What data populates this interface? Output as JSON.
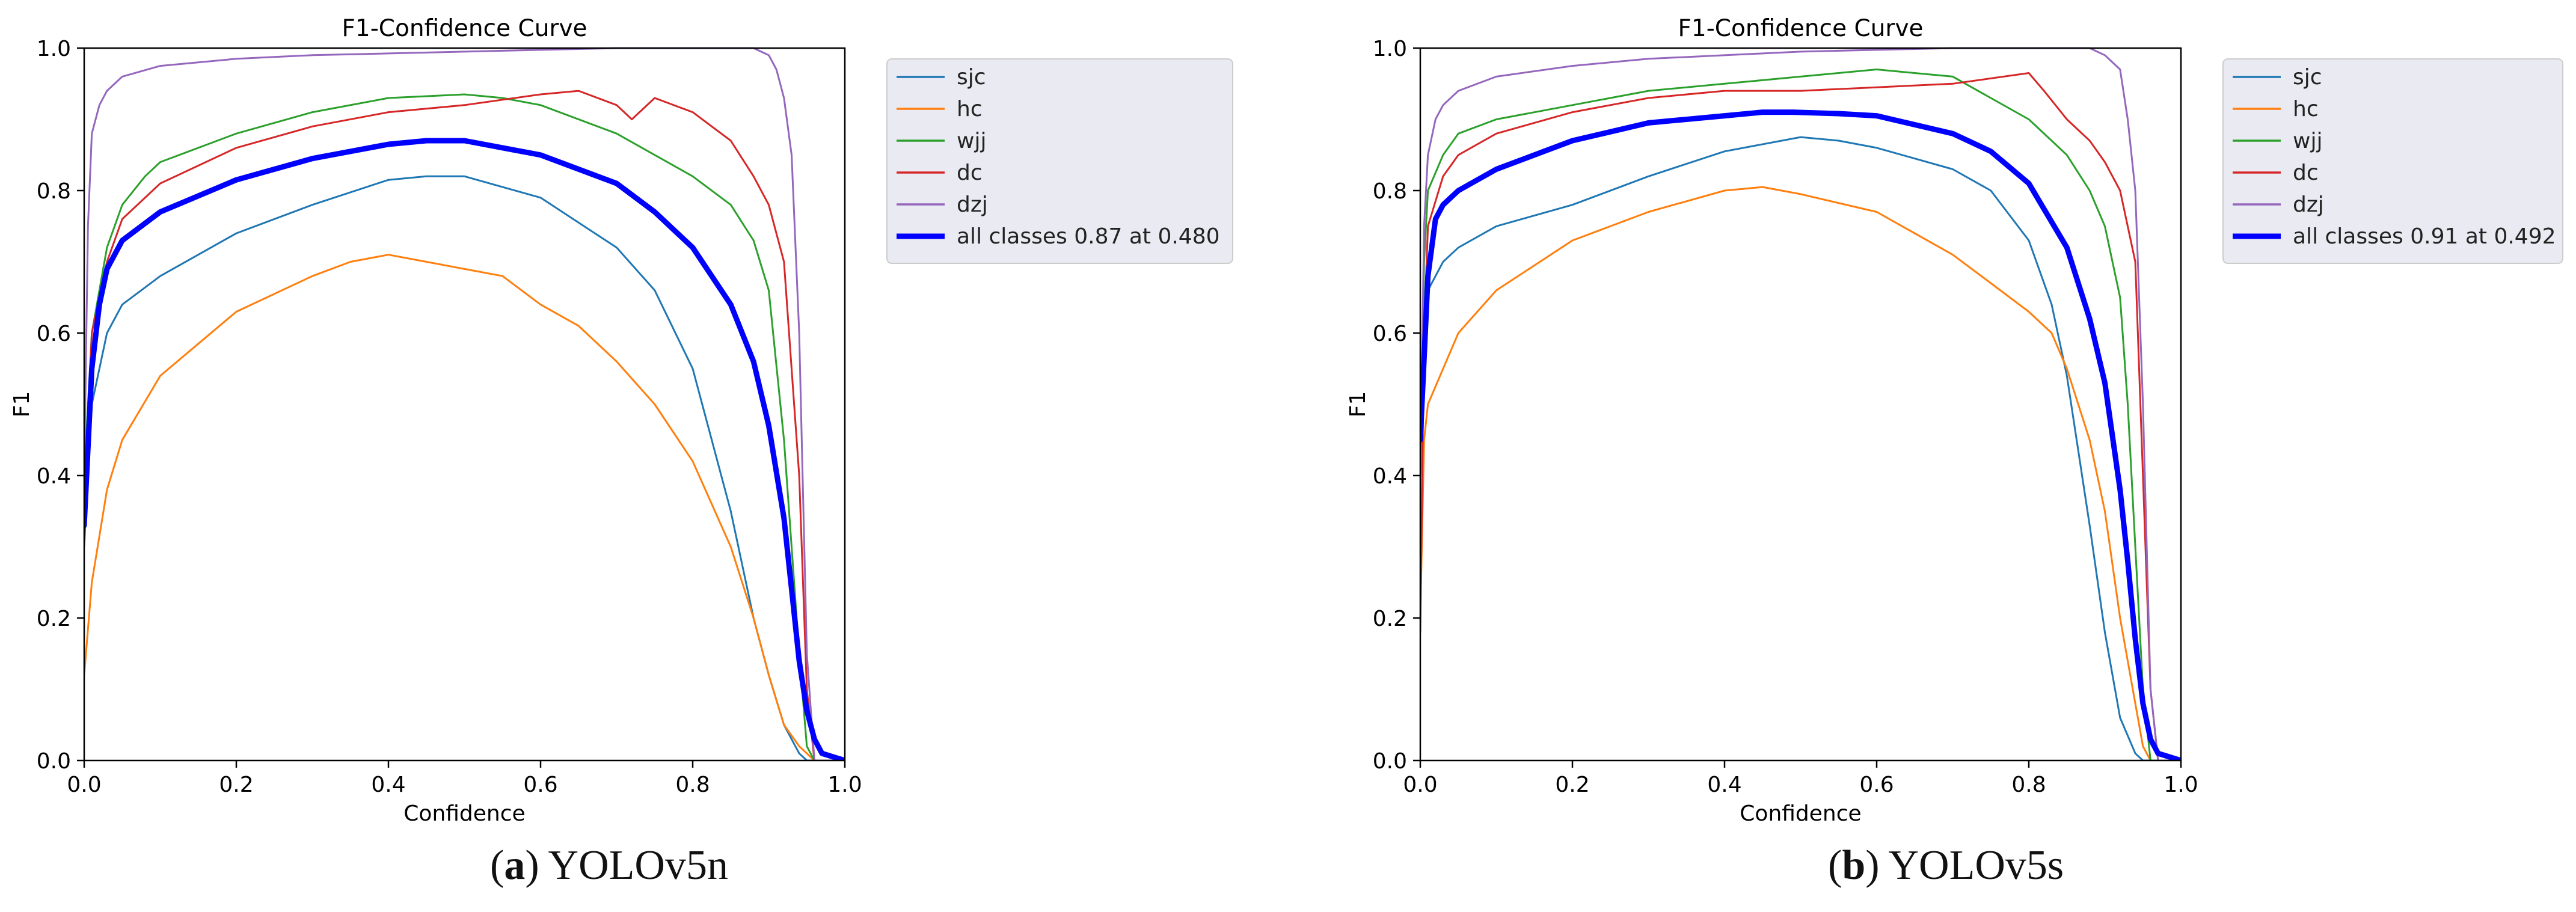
{
  "chart_data": [
    {
      "type": "line",
      "title": "F1-Confidence Curve",
      "xlabel": "Confidence",
      "ylabel": "F1",
      "xlim": [
        0.0,
        1.0
      ],
      "ylim": [
        0.0,
        1.0
      ],
      "xticks": [
        "0.0",
        "0.2",
        "0.4",
        "0.6",
        "0.8",
        "1.0"
      ],
      "yticks": [
        "0.0",
        "0.2",
        "0.4",
        "0.6",
        "0.8",
        "1.0"
      ],
      "grid": false,
      "legend_position": "outside-right-top",
      "caption": {
        "letter": "a",
        "text": "YOLOv5n"
      },
      "series": [
        {
          "name": "sjc",
          "color": "#1f77b4",
          "width": 1,
          "x": [
            0.0,
            0.01,
            0.03,
            0.05,
            0.1,
            0.2,
            0.3,
            0.4,
            0.45,
            0.5,
            0.6,
            0.7,
            0.75,
            0.8,
            0.85,
            0.88,
            0.9,
            0.92,
            0.94,
            0.95,
            1.0
          ],
          "y": [
            0.3,
            0.5,
            0.6,
            0.64,
            0.68,
            0.74,
            0.78,
            0.815,
            0.82,
            0.82,
            0.79,
            0.72,
            0.66,
            0.55,
            0.35,
            0.2,
            0.12,
            0.05,
            0.01,
            0.0,
            0.0
          ]
        },
        {
          "name": "hc",
          "color": "#ff7f0e",
          "width": 1,
          "x": [
            0.0,
            0.01,
            0.03,
            0.05,
            0.1,
            0.2,
            0.3,
            0.35,
            0.4,
            0.45,
            0.5,
            0.55,
            0.6,
            0.65,
            0.7,
            0.75,
            0.8,
            0.85,
            0.88,
            0.9,
            0.92,
            0.94,
            0.96,
            1.0
          ],
          "y": [
            0.12,
            0.25,
            0.38,
            0.45,
            0.54,
            0.63,
            0.68,
            0.7,
            0.71,
            0.7,
            0.69,
            0.68,
            0.64,
            0.61,
            0.56,
            0.5,
            0.42,
            0.3,
            0.2,
            0.12,
            0.05,
            0.02,
            0.0,
            0.0
          ]
        },
        {
          "name": "wjj",
          "color": "#2ca02c",
          "width": 1,
          "x": [
            0.0,
            0.01,
            0.03,
            0.05,
            0.08,
            0.1,
            0.2,
            0.3,
            0.4,
            0.5,
            0.55,
            0.6,
            0.7,
            0.8,
            0.85,
            0.88,
            0.9,
            0.92,
            0.94,
            0.95,
            0.96,
            1.0
          ],
          "y": [
            0.4,
            0.6,
            0.72,
            0.78,
            0.82,
            0.84,
            0.88,
            0.91,
            0.93,
            0.935,
            0.93,
            0.92,
            0.88,
            0.82,
            0.78,
            0.73,
            0.66,
            0.45,
            0.15,
            0.02,
            0.0,
            0.0
          ]
        },
        {
          "name": "dc",
          "color": "#d62728",
          "width": 1,
          "x": [
            0.0,
            0.01,
            0.03,
            0.05,
            0.1,
            0.2,
            0.3,
            0.4,
            0.5,
            0.6,
            0.65,
            0.7,
            0.72,
            0.75,
            0.8,
            0.85,
            0.88,
            0.9,
            0.92,
            0.94,
            0.95,
            0.96,
            1.0
          ],
          "y": [
            0.35,
            0.6,
            0.7,
            0.76,
            0.81,
            0.86,
            0.89,
            0.91,
            0.92,
            0.935,
            0.94,
            0.92,
            0.9,
            0.93,
            0.91,
            0.87,
            0.82,
            0.78,
            0.7,
            0.4,
            0.1,
            0.0,
            0.0
          ]
        },
        {
          "name": "dzj",
          "color": "#9467bd",
          "width": 1,
          "x": [
            0.0,
            0.005,
            0.01,
            0.02,
            0.03,
            0.05,
            0.1,
            0.2,
            0.3,
            0.5,
            0.7,
            0.8,
            0.88,
            0.9,
            0.91,
            0.92,
            0.93,
            0.94,
            0.95,
            0.96,
            1.0
          ],
          "y": [
            0.4,
            0.75,
            0.88,
            0.92,
            0.94,
            0.96,
            0.975,
            0.985,
            0.99,
            0.995,
            1.0,
            1.0,
            1.0,
            0.99,
            0.97,
            0.93,
            0.85,
            0.6,
            0.15,
            0.0,
            0.0
          ]
        },
        {
          "name": "all classes 0.87 at 0.480",
          "color": "#0000ff",
          "width": 3,
          "x": [
            0.0,
            0.01,
            0.02,
            0.03,
            0.05,
            0.1,
            0.2,
            0.3,
            0.4,
            0.45,
            0.48,
            0.5,
            0.6,
            0.7,
            0.75,
            0.8,
            0.85,
            0.88,
            0.9,
            0.92,
            0.93,
            0.94,
            0.95,
            0.96,
            0.97,
            1.0
          ],
          "y": [
            0.33,
            0.55,
            0.64,
            0.69,
            0.73,
            0.77,
            0.815,
            0.845,
            0.865,
            0.87,
            0.87,
            0.87,
            0.85,
            0.81,
            0.77,
            0.72,
            0.64,
            0.56,
            0.47,
            0.34,
            0.24,
            0.14,
            0.07,
            0.03,
            0.01,
            0.0
          ]
        }
      ]
    },
    {
      "type": "line",
      "title": "F1-Confidence Curve",
      "xlabel": "Confidence",
      "ylabel": "F1",
      "xlim": [
        0.0,
        1.0
      ],
      "ylim": [
        0.0,
        1.0
      ],
      "xticks": [
        "0.0",
        "0.2",
        "0.4",
        "0.6",
        "0.8",
        "1.0"
      ],
      "yticks": [
        "0.0",
        "0.2",
        "0.4",
        "0.6",
        "0.8",
        "1.0"
      ],
      "grid": false,
      "legend_position": "outside-right-top",
      "caption": {
        "letter": "b",
        "text": "YOLOv5s"
      },
      "series": [
        {
          "name": "sjc",
          "color": "#1f77b4",
          "width": 1,
          "x": [
            0.0,
            0.01,
            0.03,
            0.05,
            0.1,
            0.2,
            0.3,
            0.4,
            0.5,
            0.55,
            0.6,
            0.7,
            0.75,
            0.8,
            0.83,
            0.85,
            0.88,
            0.9,
            0.92,
            0.94,
            0.95,
            1.0
          ],
          "y": [
            0.5,
            0.66,
            0.7,
            0.72,
            0.75,
            0.78,
            0.82,
            0.855,
            0.875,
            0.87,
            0.86,
            0.83,
            0.8,
            0.73,
            0.64,
            0.54,
            0.33,
            0.18,
            0.06,
            0.01,
            0.0,
            0.0
          ]
        },
        {
          "name": "hc",
          "color": "#ff7f0e",
          "width": 1,
          "x": [
            0.0,
            0.005,
            0.01,
            0.03,
            0.05,
            0.1,
            0.2,
            0.3,
            0.4,
            0.45,
            0.5,
            0.6,
            0.7,
            0.75,
            0.8,
            0.83,
            0.85,
            0.88,
            0.9,
            0.92,
            0.94,
            0.95,
            0.96,
            1.0
          ],
          "y": [
            0.2,
            0.45,
            0.5,
            0.55,
            0.6,
            0.66,
            0.73,
            0.77,
            0.8,
            0.805,
            0.795,
            0.77,
            0.71,
            0.67,
            0.63,
            0.6,
            0.55,
            0.45,
            0.35,
            0.2,
            0.08,
            0.02,
            0.0,
            0.0
          ]
        },
        {
          "name": "wjj",
          "color": "#2ca02c",
          "width": 1,
          "x": [
            0.0,
            0.005,
            0.01,
            0.03,
            0.05,
            0.1,
            0.2,
            0.3,
            0.4,
            0.5,
            0.6,
            0.65,
            0.7,
            0.75,
            0.8,
            0.85,
            0.88,
            0.9,
            0.92,
            0.93,
            0.94,
            0.95,
            0.96,
            1.0
          ],
          "y": [
            0.4,
            0.7,
            0.8,
            0.85,
            0.88,
            0.9,
            0.92,
            0.94,
            0.95,
            0.96,
            0.97,
            0.965,
            0.96,
            0.93,
            0.9,
            0.85,
            0.8,
            0.75,
            0.65,
            0.5,
            0.3,
            0.1,
            0.0,
            0.0
          ]
        },
        {
          "name": "dc",
          "color": "#d62728",
          "width": 1,
          "x": [
            0.0,
            0.005,
            0.01,
            0.03,
            0.05,
            0.1,
            0.2,
            0.3,
            0.4,
            0.5,
            0.6,
            0.7,
            0.8,
            0.82,
            0.85,
            0.88,
            0.9,
            0.92,
            0.94,
            0.95,
            0.96,
            0.97,
            1.0
          ],
          "y": [
            0.18,
            0.6,
            0.75,
            0.82,
            0.85,
            0.88,
            0.91,
            0.93,
            0.94,
            0.94,
            0.945,
            0.95,
            0.965,
            0.94,
            0.9,
            0.87,
            0.84,
            0.8,
            0.7,
            0.4,
            0.1,
            0.0,
            0.0
          ]
        },
        {
          "name": "dzj",
          "color": "#9467bd",
          "width": 1,
          "x": [
            0.0,
            0.005,
            0.01,
            0.02,
            0.03,
            0.05,
            0.1,
            0.2,
            0.3,
            0.5,
            0.7,
            0.8,
            0.88,
            0.9,
            0.92,
            0.93,
            0.94,
            0.95,
            0.96,
            0.97,
            1.0
          ],
          "y": [
            0.4,
            0.75,
            0.85,
            0.9,
            0.92,
            0.94,
            0.96,
            0.975,
            0.985,
            0.995,
            1.0,
            1.0,
            1.0,
            0.99,
            0.97,
            0.9,
            0.8,
            0.5,
            0.1,
            0.0,
            0.0
          ]
        },
        {
          "name": "all classes 0.91 at 0.492",
          "color": "#0000ff",
          "width": 3,
          "x": [
            0.0,
            0.01,
            0.02,
            0.03,
            0.05,
            0.1,
            0.2,
            0.3,
            0.4,
            0.45,
            0.49,
            0.55,
            0.6,
            0.7,
            0.75,
            0.8,
            0.85,
            0.88,
            0.9,
            0.92,
            0.93,
            0.94,
            0.95,
            0.96,
            0.97,
            1.0
          ],
          "y": [
            0.45,
            0.68,
            0.76,
            0.78,
            0.8,
            0.83,
            0.87,
            0.895,
            0.905,
            0.91,
            0.91,
            0.908,
            0.905,
            0.88,
            0.855,
            0.81,
            0.72,
            0.62,
            0.53,
            0.38,
            0.28,
            0.17,
            0.08,
            0.03,
            0.01,
            0.0
          ]
        }
      ]
    }
  ]
}
